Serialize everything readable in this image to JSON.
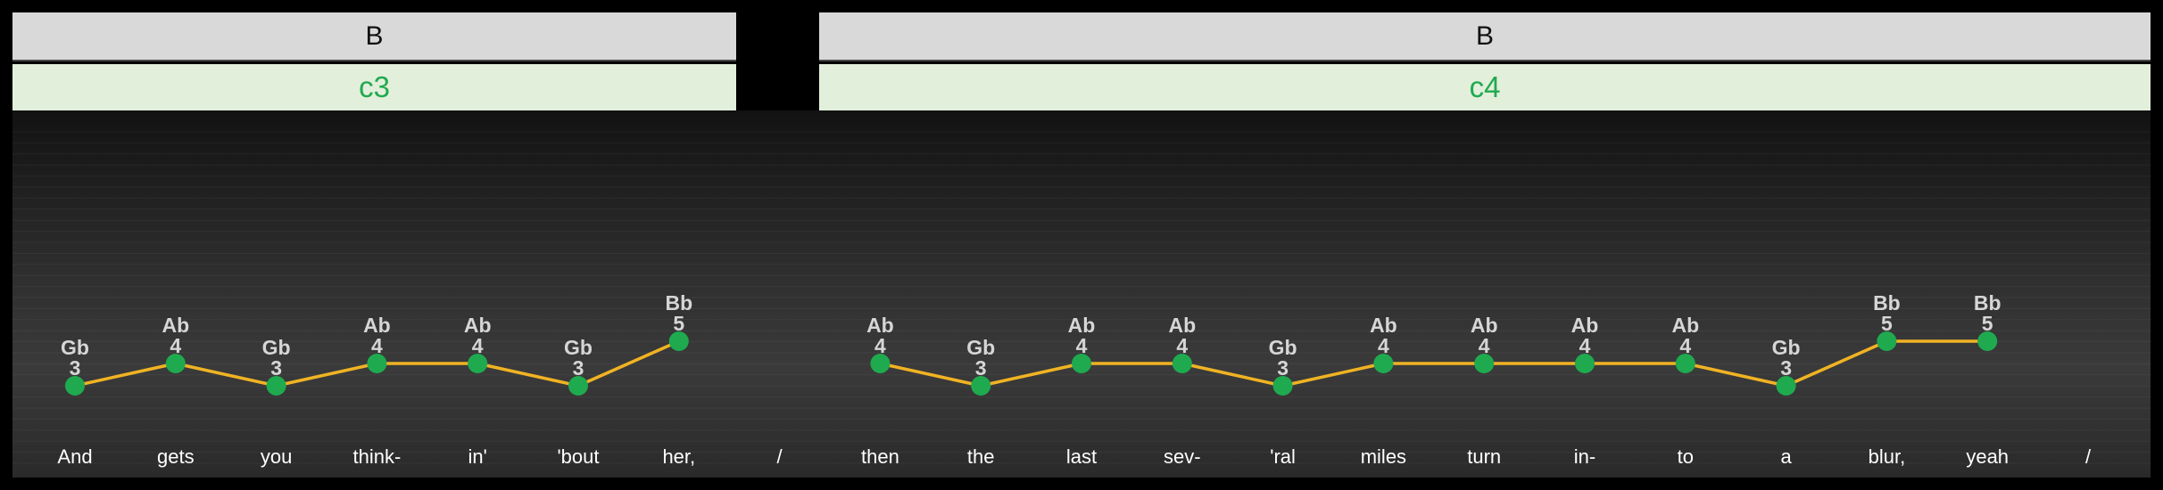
{
  "sections": [
    {
      "label": "B",
      "chord": "c3"
    },
    {
      "label": "B",
      "chord": "c4"
    }
  ],
  "colors": {
    "line": "#f0b323",
    "marker": "#1faa4f",
    "note_label": "#d6d6d6",
    "lyric": "#ffffff",
    "section_bg": "#d9d9d9",
    "chord_bg": "#e2efda",
    "chord_text": "#1faa4f"
  },
  "chart_data": {
    "type": "line",
    "title": "",
    "xlabel": "",
    "ylabel": "",
    "grid": true,
    "categories": [
      "And",
      "gets",
      "you",
      "think-",
      "in'",
      "'bout",
      "her,",
      "/",
      "then",
      "the",
      "last",
      "sev-",
      "'ral",
      "miles",
      "turn",
      "in-",
      "to",
      "a",
      "blur,",
      "yeah",
      "/"
    ],
    "series": [
      {
        "values": [
          3,
          4,
          3,
          4,
          4,
          3,
          5,
          null,
          4,
          3,
          4,
          4,
          3,
          4,
          4,
          4,
          4,
          3,
          5,
          5,
          null
        ],
        "notes": [
          "Gb",
          "Ab",
          "Gb",
          "Ab",
          "Ab",
          "Gb",
          "Bb",
          null,
          "Ab",
          "Gb",
          "Ab",
          "Ab",
          "Gb",
          "Ab",
          "Ab",
          "Ab",
          "Ab",
          "Gb",
          "Bb",
          "Bb",
          null
        ],
        "octaves": [
          "3",
          "4",
          "3",
          "4",
          "4",
          "3",
          "5",
          null,
          "4",
          "3",
          "4",
          "4",
          "3",
          "4",
          "4",
          "4",
          "4",
          "3",
          "5",
          "5",
          null
        ]
      }
    ]
  }
}
